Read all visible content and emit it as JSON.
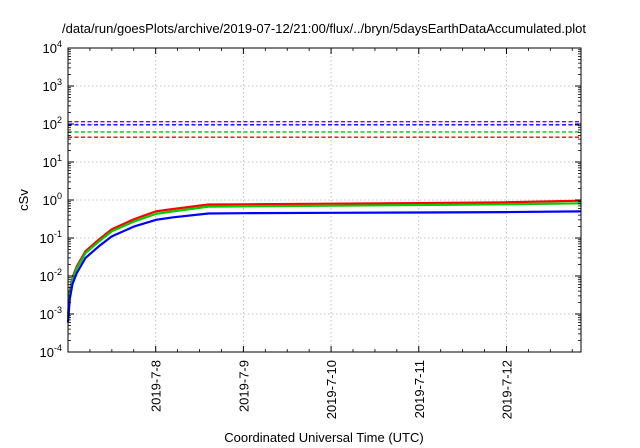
{
  "chart_data": {
    "type": "line",
    "title": "/data/run/goesPlots/archive/2019-07-12/21:00/flux/../bryn/5daysEarthDataAccumulated.plot",
    "xlabel": "Coordinated Universal Time (UTC)",
    "ylabel": "cSv",
    "yscale": "log",
    "ylim": [
      0.0001,
      10000
    ],
    "xlim_days": [
      0,
      5.85
    ],
    "x_tick_labels": [
      "2019-7-8",
      "2019-7-9",
      "2019-7-10",
      "2019-7-11",
      "2019-7-12"
    ],
    "x_tick_days": [
      1,
      2,
      3,
      4,
      5
    ],
    "y_ticks": [
      {
        "value": 0.0001,
        "base": "10",
        "exp": "-4"
      },
      {
        "value": 0.001,
        "base": "10",
        "exp": "-3"
      },
      {
        "value": 0.01,
        "base": "10",
        "exp": "-2"
      },
      {
        "value": 0.1,
        "base": "10",
        "exp": "-1"
      },
      {
        "value": 1,
        "base": "10",
        "exp": "0"
      },
      {
        "value": 10,
        "base": "10",
        "exp": "1"
      },
      {
        "value": 100,
        "base": "10",
        "exp": "2"
      },
      {
        "value": 1000,
        "base": "10",
        "exp": "3"
      },
      {
        "value": 10000,
        "base": "10",
        "exp": "4"
      }
    ],
    "grid": true,
    "thresholds": [
      {
        "value": 115,
        "color": "#8000ff"
      },
      {
        "value": 95,
        "color": "#0000ff"
      },
      {
        "value": 62,
        "color": "#00cc00"
      },
      {
        "value": 45,
        "color": "#ff0000"
      }
    ],
    "series": [
      {
        "color": "#ff0000",
        "x": [
          0,
          0.02,
          0.05,
          0.1,
          0.2,
          0.35,
          0.5,
          0.75,
          1.0,
          1.2,
          1.6,
          2.0,
          3.0,
          4.0,
          5.0,
          5.85
        ],
        "y": [
          0.0009,
          0.004,
          0.009,
          0.018,
          0.045,
          0.09,
          0.17,
          0.31,
          0.5,
          0.58,
          0.76,
          0.77,
          0.8,
          0.83,
          0.87,
          0.96
        ]
      },
      {
        "color": "#00cc00",
        "x": [
          0,
          0.02,
          0.05,
          0.1,
          0.2,
          0.35,
          0.5,
          0.75,
          1.0,
          1.2,
          1.6,
          2.0,
          3.0,
          4.0,
          5.0,
          5.85
        ],
        "y": [
          0.0008,
          0.0035,
          0.008,
          0.016,
          0.04,
          0.08,
          0.15,
          0.27,
          0.43,
          0.5,
          0.67,
          0.68,
          0.71,
          0.74,
          0.77,
          0.82
        ]
      },
      {
        "color": "#0000ff",
        "x": [
          0,
          0.02,
          0.05,
          0.1,
          0.2,
          0.35,
          0.5,
          0.75,
          1.0,
          1.2,
          1.6,
          2.0,
          3.0,
          4.0,
          5.0,
          5.85
        ],
        "y": [
          0.0006,
          0.0025,
          0.006,
          0.012,
          0.03,
          0.06,
          0.11,
          0.2,
          0.3,
          0.35,
          0.44,
          0.45,
          0.46,
          0.47,
          0.48,
          0.5
        ]
      }
    ]
  }
}
